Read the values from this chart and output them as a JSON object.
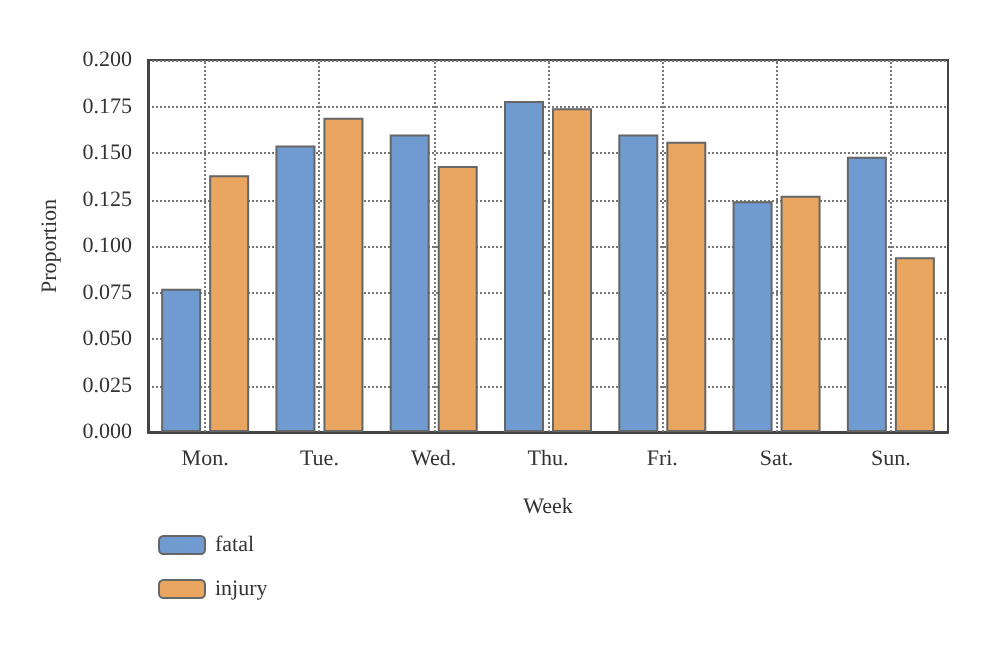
{
  "chart_data": {
    "type": "bar",
    "xlabel": "Week",
    "ylabel": "Proportion",
    "categories": [
      "Mon.",
      "Tue.",
      "Wed.",
      "Thu.",
      "Fri.",
      "Sat.",
      "Sun."
    ],
    "series": [
      {
        "name": "fatal",
        "color": "#6f9bd0",
        "values": [
          0.077,
          0.154,
          0.16,
          0.178,
          0.16,
          0.124,
          0.148
        ]
      },
      {
        "name": "injury",
        "color": "#e8a660",
        "values": [
          0.138,
          0.169,
          0.143,
          0.174,
          0.156,
          0.127,
          0.094
        ]
      }
    ],
    "ylim": [
      0,
      0.2
    ],
    "yticks": [
      {
        "value": 0,
        "label": "0.000"
      },
      {
        "value": 0.025,
        "label": "0.025"
      },
      {
        "value": 0.05,
        "label": "0.050"
      },
      {
        "value": 0.075,
        "label": "0.075"
      },
      {
        "value": 0.1,
        "label": "0.100"
      },
      {
        "value": 0.125,
        "label": "0.125"
      },
      {
        "value": 0.15,
        "label": "0.150"
      },
      {
        "value": 0.175,
        "label": "0.175"
      },
      {
        "value": 0.2,
        "label": "0.200"
      }
    ],
    "grid": true,
    "legend": "bottom left"
  }
}
